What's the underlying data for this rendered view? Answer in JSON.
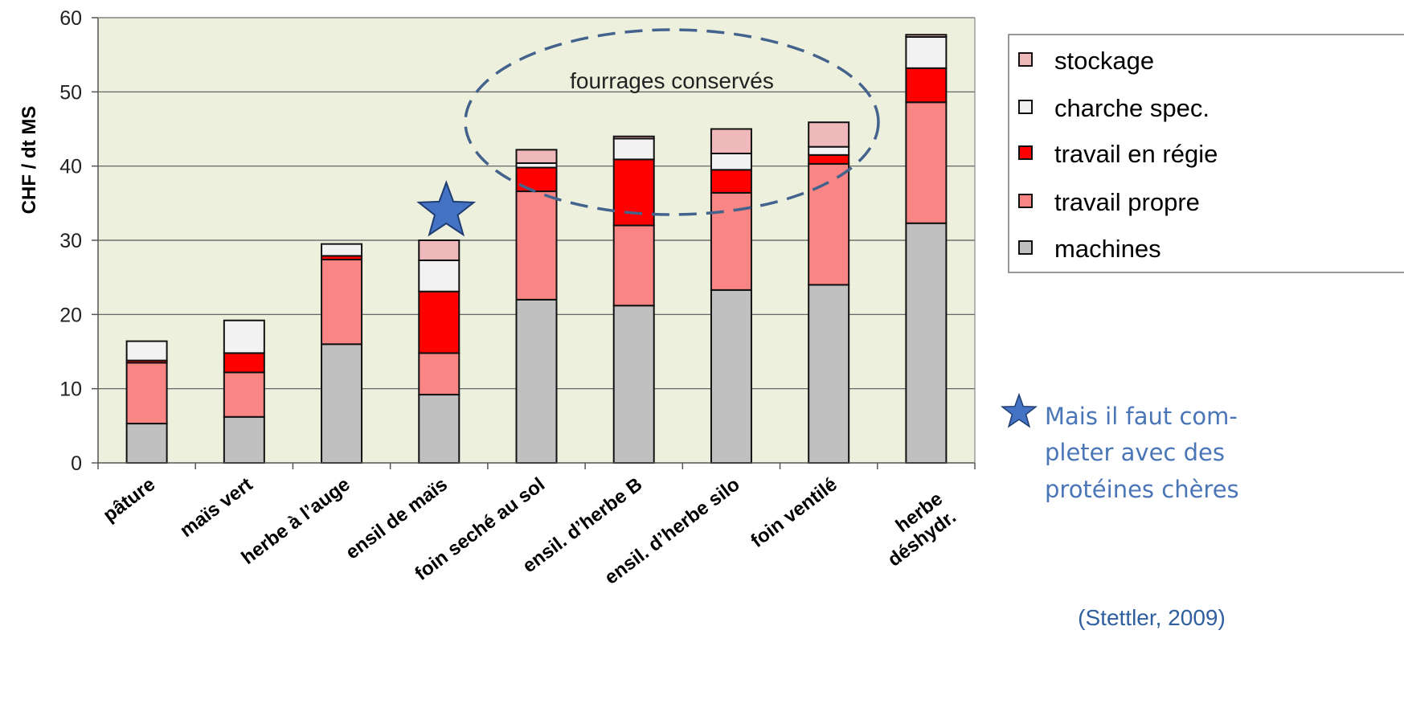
{
  "chart_data": {
    "type": "bar",
    "stacked": true,
    "ylabel": "CHF / dt MS",
    "ylim": [
      0,
      60
    ],
    "yticks": [
      0,
      10,
      20,
      30,
      40,
      50,
      60
    ],
    "grid": true,
    "legend_position": "top-right",
    "categories": [
      "pâture",
      "maïs vert",
      "herbe à l’auge",
      "ensil de maïs",
      "foin seché au sol",
      "ensil. d’herbe B",
      "ensil. d’herbe silo",
      "foin ventilé",
      "herbe déshydr."
    ],
    "category_lines": [
      [
        "pâture"
      ],
      [
        "maïs vert"
      ],
      [
        "herbe à l’auge"
      ],
      [
        "ensil de maïs"
      ],
      [
        "foin seché au sol"
      ],
      [
        "ensil. d’herbe B"
      ],
      [
        "ensil. d’herbe silo"
      ],
      [
        "foin ventilé"
      ],
      [
        "herbe",
        "déshydr."
      ]
    ],
    "series": [
      {
        "name": "machines",
        "color": "#c0c0c0",
        "values": [
          5.3,
          6.2,
          16.0,
          9.2,
          22.0,
          21.2,
          23.3,
          24.0,
          32.3
        ]
      },
      {
        "name": "travail propre",
        "color": "#f98585",
        "values": [
          8.2,
          6.0,
          11.4,
          5.6,
          14.6,
          10.8,
          13.1,
          16.3,
          16.3
        ]
      },
      {
        "name": "travail en régie",
        "color": "#ff0000",
        "values": [
          0.3,
          2.6,
          0.5,
          8.3,
          3.2,
          8.9,
          3.1,
          1.2,
          4.6
        ]
      },
      {
        "name": "charche spec.",
        "color": "#f2f2f2",
        "values": [
          2.6,
          4.4,
          1.6,
          4.2,
          0.6,
          2.8,
          2.2,
          1.1,
          4.2
        ]
      },
      {
        "name": "stockage",
        "color": "#efb8bb",
        "values": [
          0.0,
          0.0,
          0.0,
          2.7,
          1.8,
          0.3,
          3.3,
          3.3,
          0.3
        ]
      }
    ],
    "annotation": "fourrages conservés",
    "star_category": "ensil de maïs"
  },
  "note": {
    "lines": [
      "Mais il faut com-",
      "pleter avec des",
      "protéines  chères"
    ]
  },
  "citation": "(Stettler, 2009)",
  "colors": {
    "plot_bg": "#eef0de",
    "gridline": "#555555",
    "star": "#4472c4",
    "ellipse": "#44638c"
  }
}
